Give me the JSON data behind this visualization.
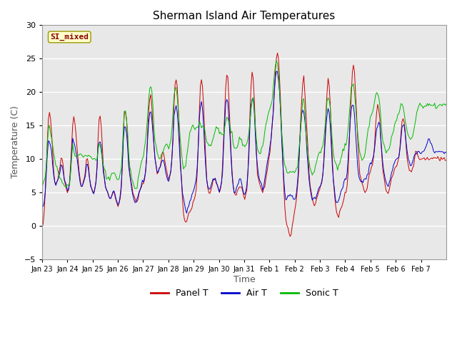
{
  "title": "Sherman Island Air Temperatures",
  "xlabel": "Time",
  "ylabel": "Temperature (C)",
  "ylim": [
    -5,
    30
  ],
  "annotation_text": "SI_mixed",
  "annotation_color": "#8B0000",
  "annotation_bg": "#FFFFCC",
  "annotation_edge": "#999900",
  "line_colors": {
    "panel": "#CC0000",
    "air": "#0000CC",
    "sonic": "#00BB00"
  },
  "legend_labels": [
    "Panel T",
    "Air T",
    "Sonic T"
  ],
  "x_tick_labels": [
    "Jan 23",
    "Jan 24",
    "Jan 25",
    "Jan 26",
    "Jan 27",
    "Jan 28",
    "Jan 29",
    "Jan 30",
    "Jan 31",
    "Feb 1",
    "Feb 2",
    "Feb 3",
    "Feb 4",
    "Feb 5",
    "Feb 6",
    "Feb 7"
  ],
  "plot_bg": "#E8E8E8",
  "grid_color": "#FFFFFF",
  "yticks": [
    -5,
    0,
    5,
    10,
    15,
    20,
    25,
    30
  ],
  "figsize": [
    6.4,
    4.8
  ],
  "dpi": 100
}
